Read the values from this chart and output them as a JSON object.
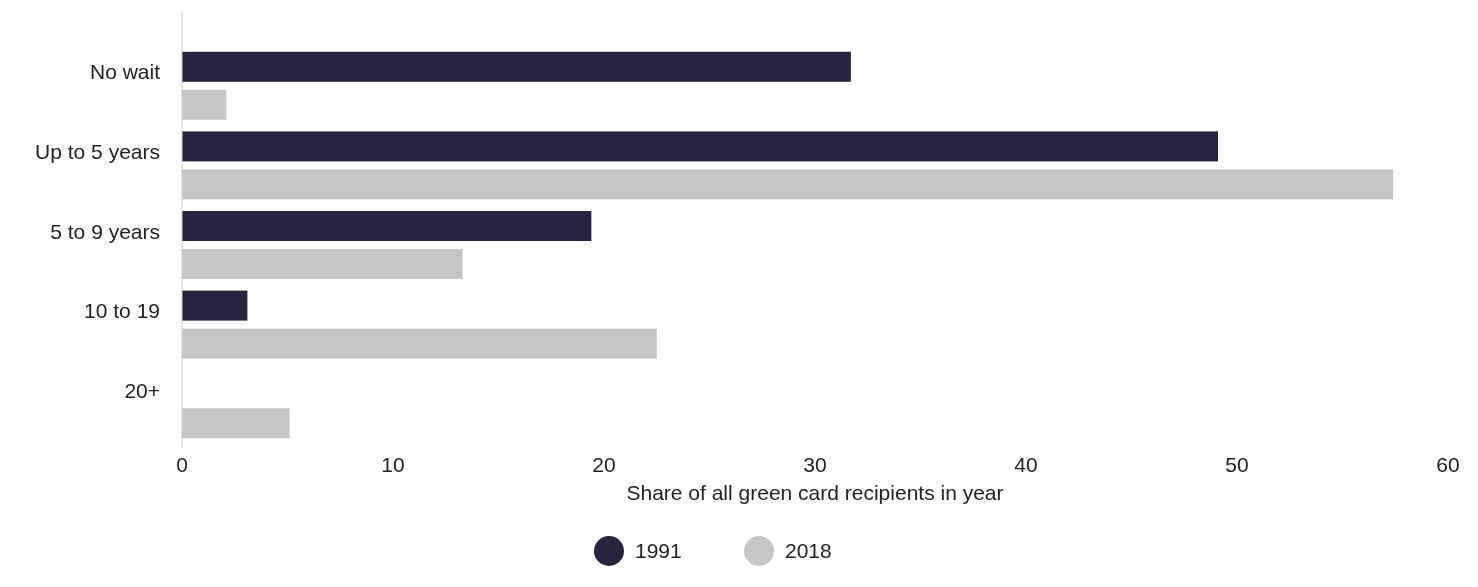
{
  "chart_data": {
    "type": "bar",
    "orientation": "horizontal",
    "xlabel": "Share of all green card recipients in year",
    "categories": [
      "No wait",
      "Up to 5 years",
      "5 to 9 years",
      "10 to 19",
      "20+"
    ],
    "series": [
      {
        "name": "1991",
        "color": "#28233e",
        "values": [
          31.7,
          49.1,
          19.4,
          3.1,
          0
        ]
      },
      {
        "name": "2018",
        "color": "#c6c6c6",
        "values": [
          2.1,
          57.4,
          13.3,
          22.5,
          5.1
        ]
      }
    ],
    "xlim": [
      0,
      60
    ],
    "xticks": [
      0,
      10,
      20,
      30,
      40,
      50,
      60
    ],
    "grid": false,
    "legend": "bottom"
  }
}
